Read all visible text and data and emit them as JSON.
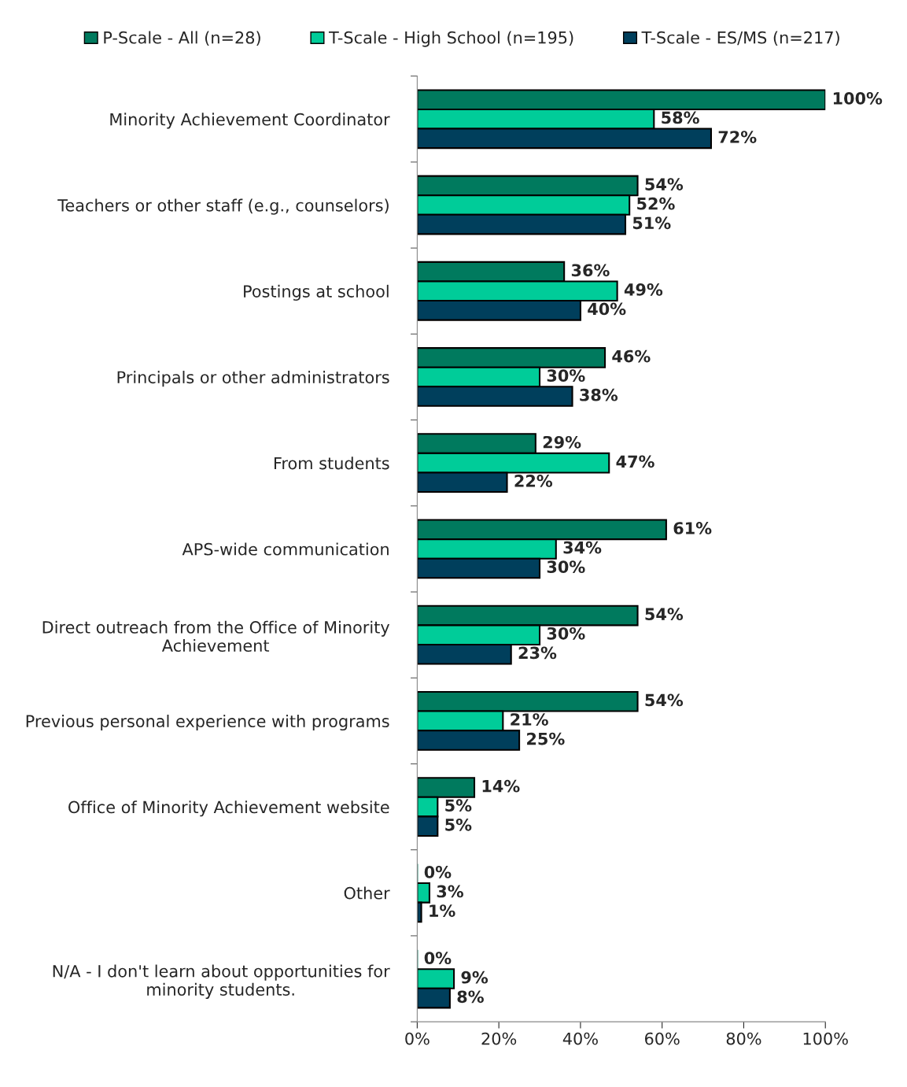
{
  "chart_data": {
    "type": "bar",
    "orientation": "horizontal",
    "categories": [
      "Minority Achievement Coordinator",
      "Teachers or other staff (e.g., counselors)",
      "Postings at school",
      "Principals or other administrators",
      "From students",
      "APS-wide communication",
      "Direct outreach from the Office of Minority Achievement",
      "Previous personal experience with programs",
      "Office of Minority Achievement website",
      "Other",
      "N/A - I don't learn about opportunities for minority students."
    ],
    "series": [
      {
        "name": "P-Scale - All (n=28)",
        "color": "#007a5e",
        "values": [
          100,
          54,
          36,
          46,
          29,
          61,
          54,
          54,
          14,
          0,
          0
        ],
        "value_labels": [
          "100%",
          "54%",
          "36%",
          "46%",
          "29%",
          "61%",
          "54%",
          "54%",
          "14%",
          "0%",
          "0%"
        ]
      },
      {
        "name": "T-Scale - High School (n=195)",
        "color": "#00cc99",
        "values": [
          58,
          52,
          49,
          30,
          47,
          34,
          30,
          21,
          5,
          3,
          9
        ],
        "value_labels": [
          "58%",
          "52%",
          "49%",
          "30%",
          "47%",
          "34%",
          "30%",
          "21%",
          "5%",
          "3%",
          "9%"
        ]
      },
      {
        "name": "T-Scale - ES/MS (n=217)",
        "color": "#003f5c",
        "values": [
          72,
          51,
          40,
          38,
          22,
          30,
          23,
          25,
          5,
          1,
          8
        ],
        "value_labels": [
          "72%",
          "51%",
          "40%",
          "38%",
          "22%",
          "30%",
          "23%",
          "25%",
          "5%",
          "1%",
          "8%"
        ]
      }
    ],
    "xlim": [
      0,
      100
    ],
    "xticks": [
      {
        "value": 0,
        "label": "0%"
      },
      {
        "value": 20,
        "label": "20%"
      },
      {
        "value": 40,
        "label": "40%"
      },
      {
        "value": 60,
        "label": "60%"
      },
      {
        "value": 80,
        "label": "80%"
      },
      {
        "value": 100,
        "label": "100%"
      }
    ],
    "grid": false,
    "legend": "top"
  }
}
